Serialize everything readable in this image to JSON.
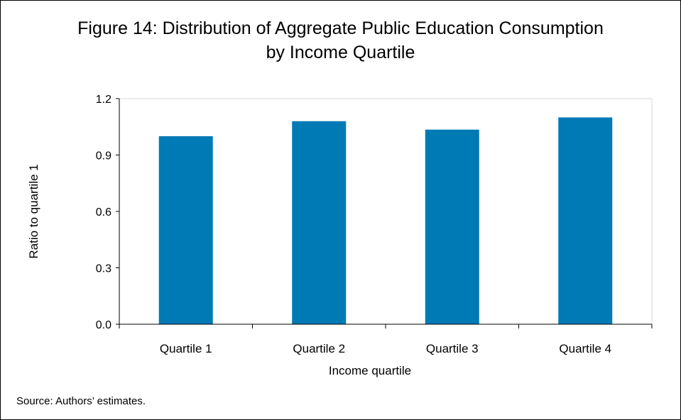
{
  "title_line1": "Figure 14: Distribution of Aggregate Public Education Consumption",
  "title_line2": "by Income Quartile",
  "source": "Source: Authors’ estimates.",
  "chart_data": {
    "type": "bar",
    "categories": [
      "Quartile 1",
      "Quartile 2",
      "Quartile 3",
      "Quartile 4"
    ],
    "values": [
      1.0,
      1.08,
      1.035,
      1.1
    ],
    "xlabel": "Income quartile",
    "ylabel": "Ratio to quartile 1",
    "ylim": [
      0,
      1.2
    ],
    "yticks": [
      "0.0",
      "0.3",
      "0.6",
      "0.9",
      "1.2"
    ],
    "grid": false,
    "legend": "none",
    "bar_color": "#007AB5"
  }
}
